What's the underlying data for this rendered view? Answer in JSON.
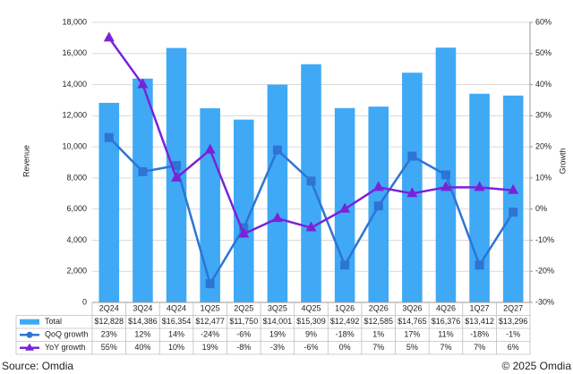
{
  "chart_data": {
    "type": "combo",
    "categories": [
      "2Q24",
      "3Q24",
      "4Q24",
      "1Q25",
      "2Q25",
      "3Q25",
      "4Q25",
      "1Q26",
      "2Q26",
      "3Q26",
      "4Q26",
      "1Q27",
      "2Q27"
    ],
    "series": [
      {
        "name": "Total",
        "type": "bar",
        "color": "#3fa9f5",
        "values": [
          12828,
          14386,
          16354,
          12477,
          11750,
          14001,
          15309,
          12492,
          12585,
          14765,
          16376,
          13412,
          13296
        ],
        "value_labels": [
          "$12,828",
          "$14,386",
          "$16,354",
          "$12,477",
          "$11,750",
          "$14,001",
          "$15,309",
          "$12,492",
          "$12,585",
          "$14,765",
          "$16,376",
          "$13,412",
          "$13,296"
        ]
      },
      {
        "name": "QoQ growth",
        "type": "line",
        "axis": "y2",
        "color": "#2e74d4",
        "marker": "square",
        "values": [
          23,
          12,
          14,
          -24,
          -6,
          19,
          9,
          -18,
          1,
          17,
          11,
          -18,
          -1
        ],
        "value_labels": [
          "23%",
          "12%",
          "14%",
          "-24%",
          "-6%",
          "19%",
          "9%",
          "-18%",
          "1%",
          "17%",
          "11%",
          "-18%",
          "-1%"
        ]
      },
      {
        "name": "YoY growth",
        "type": "line",
        "axis": "y2",
        "color": "#7b22d9",
        "marker": "triangle",
        "values": [
          55,
          40,
          10,
          19,
          -8,
          -3,
          -6,
          0,
          7,
          5,
          7,
          7,
          6
        ],
        "value_labels": [
          "55%",
          "40%",
          "10%",
          "19%",
          "-8%",
          "-3%",
          "-6%",
          "0%",
          "7%",
          "5%",
          "7%",
          "7%",
          "6%"
        ]
      }
    ],
    "y_label": "Revenue",
    "y2_label": "Growth",
    "ylim": [
      0,
      18000
    ],
    "yticks": [
      0,
      {
        "value": 2000,
        "label": "2,000"
      },
      {
        "value": 4000,
        "label": "4,000"
      },
      {
        "value": 6000,
        "label": "6,000"
      },
      {
        "value": 8000,
        "label": "8,000"
      },
      {
        "value": 10000,
        "label": "10,000"
      },
      {
        "value": 12000,
        "label": "12,000"
      },
      {
        "value": 14000,
        "label": "14,000"
      },
      {
        "value": 16000,
        "label": "16,000"
      },
      {
        "value": 18000,
        "label": "18,000"
      }
    ],
    "y2lim": [
      -30,
      60
    ],
    "y2ticks": [
      {
        "value": -30,
        "label": "-30%"
      },
      {
        "value": -20,
        "label": "-20%"
      },
      {
        "value": -10,
        "label": "-10%"
      },
      {
        "value": 0,
        "label": "0%"
      },
      {
        "value": 10,
        "label": "10%"
      },
      {
        "value": 20,
        "label": "20%"
      },
      {
        "value": 30,
        "label": "30%"
      },
      {
        "value": 40,
        "label": "40%"
      },
      {
        "value": 50,
        "label": "50%"
      },
      {
        "value": 60,
        "label": "60%"
      }
    ],
    "grid": true,
    "source": "Source: Omdia",
    "copyright": "© 2025 Omdia"
  }
}
